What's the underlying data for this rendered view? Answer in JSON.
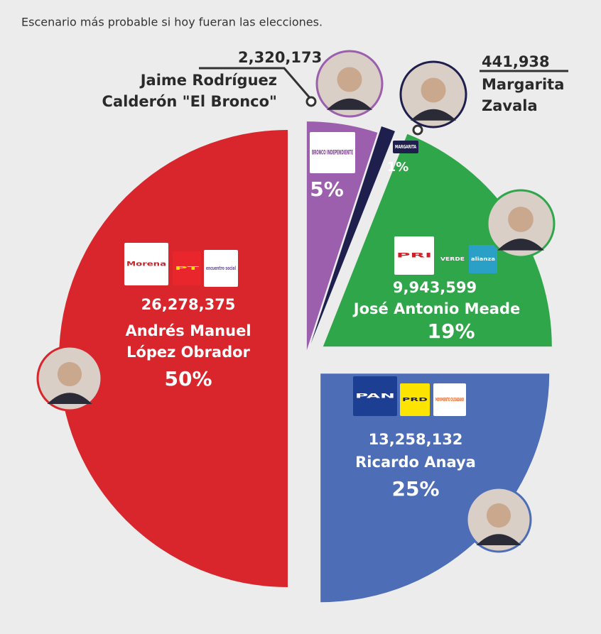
{
  "chart_data": {
    "type": "pie",
    "title": "Escenario más probable si hoy fueran las elecciones.",
    "categories": [
      [
        "Andrés Manuel",
        "López Obrador"
      ],
      [
        "Ricardo Anaya"
      ],
      [
        "José Antonio Meade"
      ],
      [
        "Jaime Rodríguez",
        "Calderón \"El Bronco\""
      ],
      [
        "Margarita",
        "Zavala"
      ]
    ],
    "votes": [
      "26,278,375",
      "13,258,132",
      "9,943,599",
      "2,320,173",
      "441,938"
    ],
    "values": [
      50,
      25,
      19,
      5,
      1
    ],
    "value_labels": [
      "50%",
      "25%",
      "19%",
      "5%",
      "1%"
    ],
    "colors": [
      "#d8262c",
      "#4d6db7",
      "#2fa64a",
      "#9b5fae",
      "#1f1f4e"
    ],
    "logos": [
      [
        "Morena",
        "PT",
        "encuentro social"
      ],
      [
        "PAN",
        "PRD",
        "MOVIMIENTO CIUDADANO"
      ],
      [
        "PRI",
        "VERDE",
        "alianza"
      ],
      [
        "BRONCO INDEPENDIENTE"
      ],
      [
        "MARGARITA"
      ]
    ]
  }
}
